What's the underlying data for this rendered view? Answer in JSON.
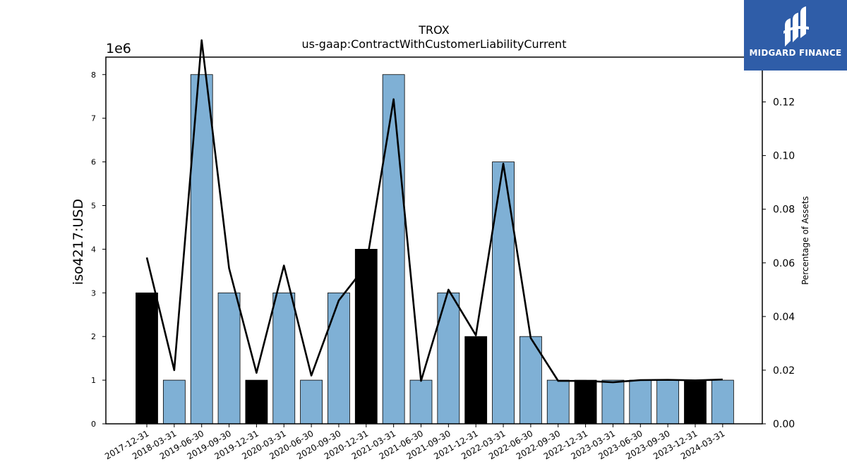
{
  "chart_data": {
    "type": "bar",
    "title": "TROX",
    "subtitle": "us-gaap:ContractWithCustomerLiabilityCurrent",
    "ylabel": "iso4217:USD",
    "ylabel_right": "Percentage of Assets",
    "y_offset_label": "1e6",
    "ylim": [
      0,
      8400000
    ],
    "ylim_right": [
      0,
      0.1367
    ],
    "y_ticks": [
      0,
      1,
      2,
      3,
      4,
      5,
      6,
      7,
      8
    ],
    "y_ticks_right": [
      "0.00",
      "0.02",
      "0.04",
      "0.06",
      "0.08",
      "0.10",
      "0.12"
    ],
    "categories": [
      "2017-12-31",
      "2018-03-31",
      "2019-06-30",
      "2019-09-30",
      "2019-12-31",
      "2020-03-31",
      "2020-06-30",
      "2020-09-30",
      "2020-12-31",
      "2021-03-31",
      "2021-06-30",
      "2021-09-30",
      "2021-12-31",
      "2022-03-31",
      "2022-06-30",
      "2022-09-30",
      "2022-12-31",
      "2023-03-31",
      "2023-06-30",
      "2023-09-30",
      "2023-12-31",
      "2024-03-31"
    ],
    "series": [
      {
        "kind": "bar",
        "values": [
          3000000,
          1000000,
          8000000,
          3000000,
          1000000,
          3000000,
          1000000,
          3000000,
          4000000,
          8000000,
          1000000,
          3000000,
          2000000,
          6000000,
          2000000,
          1000000,
          1000000,
          1000000,
          1000000,
          1000000,
          1000000,
          1000000
        ],
        "annual_flags": [
          true,
          false,
          false,
          false,
          true,
          false,
          false,
          false,
          true,
          false,
          false,
          false,
          true,
          false,
          false,
          false,
          true,
          false,
          false,
          false,
          true,
          false
        ]
      },
      {
        "kind": "line",
        "axis": "right",
        "values": [
          0.062,
          0.02,
          0.143,
          0.058,
          0.019,
          0.059,
          0.018,
          0.046,
          0.059,
          0.121,
          0.016,
          0.05,
          0.033,
          0.097,
          0.032,
          0.016,
          0.016,
          0.0155,
          0.0163,
          0.0164,
          0.0162,
          0.0165
        ]
      }
    ],
    "colors": {
      "quarterly_bar": "#7fb0d5",
      "annual_bar": "#000000",
      "line": "#000000"
    }
  },
  "logo": {
    "text": "MIDGARD FINANCE",
    "background": "#2f5da8"
  }
}
